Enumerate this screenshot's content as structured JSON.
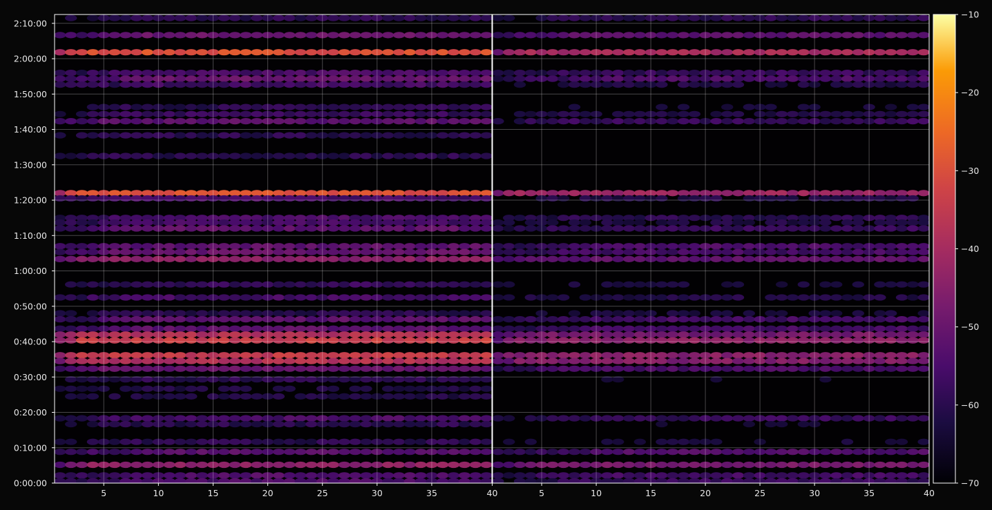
{
  "chart_data": {
    "type": "heatmap",
    "title": "",
    "xlabel": "",
    "ylabel": "",
    "panels": [
      {
        "name": "",
        "x_range": [
          1,
          40
        ]
      },
      {
        "name": "",
        "x_range": [
          1,
          40
        ]
      }
    ],
    "x_ticks": [
      5,
      10,
      15,
      20,
      25,
      30,
      35
    ],
    "x_ticks_shared_boundary": 40,
    "y_range_seconds": [
      0,
      7950
    ],
    "y_ticks": [
      {
        "seconds": 0,
        "label": "0:00:00"
      },
      {
        "seconds": 600,
        "label": "0:10:00"
      },
      {
        "seconds": 1200,
        "label": "0:20:00"
      },
      {
        "seconds": 1800,
        "label": "0:30:00"
      },
      {
        "seconds": 2400,
        "label": "0:40:00"
      },
      {
        "seconds": 3000,
        "label": "0:50:00"
      },
      {
        "seconds": 3600,
        "label": "1:00:00"
      },
      {
        "seconds": 4200,
        "label": "1:10:00"
      },
      {
        "seconds": 4800,
        "label": "1:20:00"
      },
      {
        "seconds": 5400,
        "label": "1:30:00"
      },
      {
        "seconds": 6000,
        "label": "1:40:00"
      },
      {
        "seconds": 6600,
        "label": "1:50:00"
      },
      {
        "seconds": 7200,
        "label": "2:00:00"
      },
      {
        "seconds": 7800,
        "label": "2:10:00"
      }
    ],
    "grid": true,
    "colormap": "inferno",
    "colorbar": {
      "range": [
        -70,
        -10
      ],
      "ticks": [
        {
          "value": -10,
          "label": "−10"
        },
        {
          "value": -20,
          "label": "−20"
        },
        {
          "value": -30,
          "label": "−30"
        },
        {
          "value": -40,
          "label": "−40"
        },
        {
          "value": -50,
          "label": "−50"
        },
        {
          "value": -60,
          "label": "−60"
        },
        {
          "value": -70,
          "label": "−70"
        }
      ]
    },
    "bands": [
      {
        "t": 7890,
        "left": -60,
        "right": -60,
        "ramp": 8
      },
      {
        "t": 7600,
        "left": -50,
        "right": -52,
        "ramp": 8
      },
      {
        "t": 7310,
        "left": -30,
        "right": -40,
        "ramp": 3
      },
      {
        "t": 6960,
        "left": -55,
        "right": -58,
        "ramp": 9
      },
      {
        "t": 6860,
        "left": -50,
        "right": -55,
        "ramp": 12
      },
      {
        "t": 6760,
        "left": -56,
        "right": -62,
        "ramp": 10
      },
      {
        "t": 6380,
        "left": -60,
        "right": -64,
        "ramp": 8
      },
      {
        "t": 6260,
        "left": -58,
        "right": -62,
        "ramp": 8
      },
      {
        "t": 6140,
        "left": -52,
        "right": -58,
        "ramp": 6
      },
      {
        "t": 5900,
        "left": -60,
        "right": -68,
        "ramp": 6
      },
      {
        "t": 5550,
        "left": -60,
        "right": -68,
        "ramp": 6
      },
      {
        "t": 4920,
        "left": -30,
        "right": -42,
        "ramp": 2
      },
      {
        "t": 4830,
        "left": -55,
        "right": -62,
        "ramp": 6
      },
      {
        "t": 4500,
        "left": -55,
        "right": -60,
        "ramp": 8
      },
      {
        "t": 4420,
        "left": -56,
        "right": -62,
        "ramp": 8
      },
      {
        "t": 4320,
        "left": -52,
        "right": -58,
        "ramp": 7
      },
      {
        "t": 4020,
        "left": -52,
        "right": -55,
        "ramp": 8
      },
      {
        "t": 3920,
        "left": -50,
        "right": -56,
        "ramp": 7
      },
      {
        "t": 3800,
        "left": -45,
        "right": -52,
        "ramp": 3
      },
      {
        "t": 3370,
        "left": -58,
        "right": -64,
        "ramp": 8
      },
      {
        "t": 3150,
        "left": -56,
        "right": -62,
        "ramp": 6
      },
      {
        "t": 2880,
        "left": -60,
        "right": -64,
        "ramp": 8
      },
      {
        "t": 2780,
        "left": -52,
        "right": -56,
        "ramp": 10
      },
      {
        "t": 2620,
        "left": -52,
        "right": -56,
        "ramp": 8
      },
      {
        "t": 2520,
        "left": -38,
        "right": -48,
        "ramp": 3
      },
      {
        "t": 2420,
        "left": -34,
        "right": -44,
        "ramp": 3
      },
      {
        "t": 2170,
        "left": -35,
        "right": -45,
        "ramp": 2
      },
      {
        "t": 2070,
        "left": -38,
        "right": -46,
        "ramp": 3
      },
      {
        "t": 1940,
        "left": -50,
        "right": -55,
        "ramp": 6
      },
      {
        "t": 1760,
        "left": -60,
        "right": -66,
        "ramp": 8
      },
      {
        "t": 1600,
        "left": -62,
        "right": -68,
        "ramp": 8
      },
      {
        "t": 1470,
        "left": -62,
        "right": -68,
        "ramp": 8
      },
      {
        "t": 1100,
        "left": -55,
        "right": -58,
        "ramp": 10
      },
      {
        "t": 1000,
        "left": -60,
        "right": -66,
        "ramp": 8
      },
      {
        "t": 700,
        "left": -60,
        "right": -64,
        "ramp": 8
      },
      {
        "t": 530,
        "left": -52,
        "right": -54,
        "ramp": 12
      },
      {
        "t": 310,
        "left": -44,
        "right": -48,
        "ramp": 4
      },
      {
        "t": 130,
        "left": -54,
        "right": -56,
        "ramp": 10
      },
      {
        "t": 30,
        "left": -55,
        "right": -58,
        "ramp": 10
      }
    ]
  }
}
